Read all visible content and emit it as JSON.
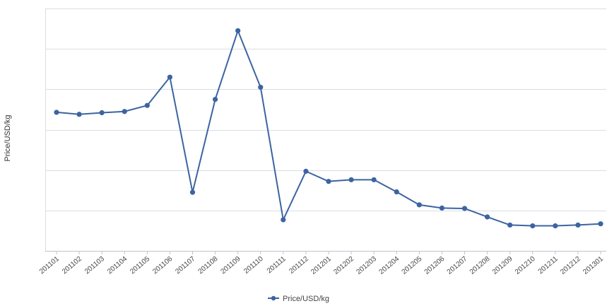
{
  "chart_data": {
    "type": "line",
    "title": "",
    "xlabel": "",
    "ylabel": "Price/USD/kg",
    "categories": [
      "201101",
      "201102",
      "201103",
      "201104",
      "201105",
      "201106",
      "201107",
      "201108",
      "201109",
      "201110",
      "201111",
      "201112",
      "201201",
      "201202",
      "201203",
      "201204",
      "201205",
      "201206",
      "201207",
      "201208",
      "201209",
      "201210",
      "201211",
      "201212",
      "201301"
    ],
    "series": [
      {
        "name": "Price/USD/kg",
        "color": "#3c64a0",
        "values": [
          3.43,
          3.38,
          3.42,
          3.45,
          3.6,
          4.3,
          1.45,
          3.75,
          5.45,
          4.05,
          0.77,
          1.97,
          1.72,
          1.76,
          1.76,
          1.46,
          1.14,
          1.06,
          1.05,
          0.84,
          0.64,
          0.62,
          0.62,
          0.64,
          0.67
        ]
      }
    ],
    "ylim": [
      0,
      6
    ],
    "y_grid_step": 1,
    "y_tick_labels_shown": false,
    "grid": true,
    "legend": "bottom-center"
  }
}
